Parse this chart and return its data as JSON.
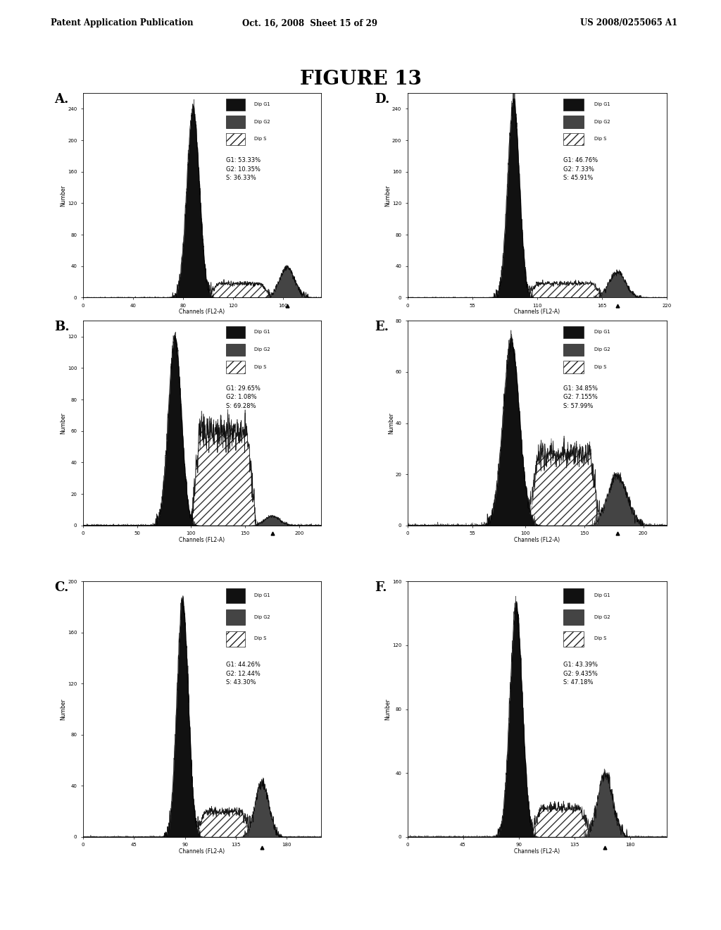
{
  "title": "FIGURE 13",
  "header_left": "Patent Application Publication",
  "header_center": "Oct. 16, 2008  Sheet 15 of 29",
  "header_right": "US 2008/0255065 A1",
  "panels": [
    {
      "label": "A.",
      "g1": "53.33%",
      "g2": "10.35%",
      "s": "36.33%",
      "xlim": [
        0,
        190
      ],
      "ylim": [
        0,
        260
      ],
      "xticks": [
        0,
        40,
        80,
        120,
        160
      ],
      "xtick_labels": [
        "0",
        "40",
        "80",
        "120",
        "160"
      ],
      "yticks": [
        0,
        40,
        80,
        120,
        160,
        200,
        240
      ],
      "ytick_labels": [
        "0",
        "40",
        "80",
        "120",
        "160",
        "200",
        "240"
      ],
      "xlabel": "Channels (FL2-A)",
      "g1_peak": 88,
      "g1_height": 240,
      "g1_sigma": 5,
      "g2_peak": 163,
      "g2_height": 38,
      "g2_sigma": 6,
      "s_start": 100,
      "s_end": 150,
      "s_level": 18,
      "tri_x": 90,
      "tri_x2": 163
    },
    {
      "label": "B.",
      "g1": "29.65%",
      "g2": "1.08%",
      "s": "69.28%",
      "xlim": [
        0,
        220
      ],
      "ylim": [
        0,
        130
      ],
      "xticks": [
        0,
        50,
        100,
        150,
        200
      ],
      "xtick_labels": [
        "0",
        "50",
        "100",
        "150",
        "200"
      ],
      "yticks": [
        0,
        20,
        40,
        60,
        80,
        100,
        120
      ],
      "ytick_labels": [
        "0",
        "20",
        "40",
        "60",
        "80",
        "100",
        "120"
      ],
      "xlabel": "Channels (FL2-A)",
      "g1_peak": 85,
      "g1_height": 120,
      "g1_sigma": 6,
      "g2_peak": 175,
      "g2_height": 6,
      "g2_sigma": 7,
      "s_start": 100,
      "s_end": 160,
      "s_level": 60,
      "tri_x": 85,
      "tri_x2": 175
    },
    {
      "label": "C.",
      "g1": "44.26%",
      "g2": "12.44%",
      "s": "43.30%",
      "xlim": [
        0,
        210
      ],
      "ylim": [
        0,
        200
      ],
      "xticks": [
        0,
        45,
        90,
        135,
        180
      ],
      "xtick_labels": [
        "0",
        "45",
        "90",
        "135",
        "180"
      ],
      "yticks": [
        0,
        40,
        80,
        120,
        160,
        200
      ],
      "ytick_labels": [
        "0",
        "40",
        "80",
        "120",
        "160",
        "200"
      ],
      "xlabel": "Channels (FL2-A)",
      "g1_peak": 88,
      "g1_height": 185,
      "g1_sigma": 5,
      "g2_peak": 158,
      "g2_height": 42,
      "g2_sigma": 6,
      "s_start": 100,
      "s_end": 148,
      "s_level": 20,
      "tri_x": 88,
      "tri_x2": 158
    },
    {
      "label": "D.",
      "g1": "46.76%",
      "g2": "7.33%",
      "s": "45.91%",
      "xlim": [
        0,
        220
      ],
      "ylim": [
        0,
        260
      ],
      "xticks": [
        0,
        55,
        110,
        165,
        220
      ],
      "xtick_labels": [
        "0",
        "55",
        "110",
        "165",
        "220"
      ],
      "yticks": [
        0,
        40,
        80,
        120,
        160,
        200,
        240
      ],
      "ytick_labels": [
        "0",
        "40",
        "80",
        "120",
        "160",
        "200",
        "240"
      ],
      "xlabel": "Channels (FL2-A)",
      "g1_peak": 90,
      "g1_height": 250,
      "g1_sigma": 5,
      "g2_peak": 178,
      "g2_height": 32,
      "g2_sigma": 7,
      "s_start": 102,
      "s_end": 165,
      "s_level": 18,
      "tri_x": 90,
      "tri_x2": 178
    },
    {
      "label": "E.",
      "g1": "34.85%",
      "g2": "7.155%",
      "s": "57.99%",
      "xlim": [
        0,
        220
      ],
      "ylim": [
        0,
        80
      ],
      "xticks": [
        0,
        55,
        100,
        150,
        200
      ],
      "xtick_labels": [
        "0",
        "55",
        "100",
        "150",
        "200"
      ],
      "yticks": [
        0,
        20,
        40,
        60,
        80
      ],
      "ytick_labels": [
        "0",
        "20",
        "40",
        "60",
        "80"
      ],
      "xlabel": "Channels (FL2-A)",
      "g1_peak": 88,
      "g1_height": 72,
      "g1_sigma": 7,
      "g2_peak": 178,
      "g2_height": 20,
      "g2_sigma": 8,
      "s_start": 103,
      "s_end": 163,
      "s_level": 28,
      "tri_x": 88,
      "tri_x2": 178
    },
    {
      "label": "F.",
      "g1": "43.39%",
      "g2": "9.435%",
      "s": "47.18%",
      "xlim": [
        0,
        210
      ],
      "ylim": [
        0,
        160
      ],
      "xticks": [
        0,
        45,
        90,
        135,
        180
      ],
      "xtick_labels": [
        "0",
        "45",
        "90",
        "135",
        "180"
      ],
      "yticks": [
        0,
        40,
        80,
        120,
        160
      ],
      "ytick_labels": [
        "0",
        "40",
        "80",
        "120",
        "160"
      ],
      "xlabel": "Channels (FL2-A)",
      "g1_peak": 88,
      "g1_height": 145,
      "g1_sigma": 5,
      "g2_peak": 160,
      "g2_height": 40,
      "g2_sigma": 6,
      "s_start": 100,
      "s_end": 148,
      "s_level": 18,
      "tri_x": 88,
      "tri_x2": 160
    }
  ],
  "bg_color": "#ffffff"
}
